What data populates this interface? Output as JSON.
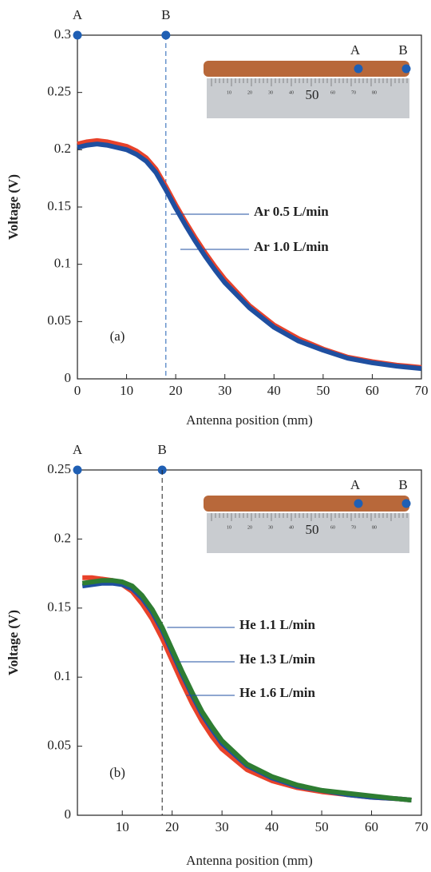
{
  "chart_data": [
    {
      "type": "line",
      "panel_label": "(a)",
      "xlabel": "Antenna position (mm)",
      "ylabel": "Voltage (V)",
      "xlim": [
        0,
        70
      ],
      "ylim": [
        0,
        0.3
      ],
      "xticks": [
        0,
        10,
        20,
        30,
        40,
        50,
        60,
        70
      ],
      "yticks": [
        0,
        0.05,
        0.1,
        0.15,
        0.2,
        0.25,
        0.3
      ],
      "x": [
        0,
        2,
        4,
        6,
        8,
        10,
        12,
        14,
        16,
        18,
        20,
        22,
        24,
        26,
        28,
        30,
        35,
        40,
        45,
        50,
        55,
        60,
        65,
        70
      ],
      "series": [
        {
          "name": "Ar 0.5 L/min",
          "color": "#e8422a",
          "values": [
            0.205,
            0.207,
            0.208,
            0.207,
            0.205,
            0.203,
            0.199,
            0.193,
            0.183,
            0.168,
            0.152,
            0.137,
            0.123,
            0.11,
            0.098,
            0.087,
            0.064,
            0.047,
            0.035,
            0.026,
            0.019,
            0.015,
            0.012,
            0.01
          ]
        },
        {
          "name": "Ar 1.0 L/min",
          "color": "#1f4fa0",
          "values": [
            0.202,
            0.204,
            0.205,
            0.204,
            0.202,
            0.2,
            0.196,
            0.19,
            0.18,
            0.165,
            0.149,
            0.134,
            0.12,
            0.107,
            0.095,
            0.084,
            0.062,
            0.045,
            0.033,
            0.025,
            0.018,
            0.014,
            0.011,
            0.009
          ]
        }
      ],
      "markers": [
        {
          "label": "A",
          "x": 0
        },
        {
          "label": "B",
          "x": 18
        }
      ],
      "inset": {
        "point_labels": [
          "A",
          "B"
        ],
        "ruler_labels": [
          "10",
          "20",
          "30",
          "40",
          "60",
          "70",
          "80"
        ],
        "ruler_highlight": "50"
      }
    },
    {
      "type": "line",
      "panel_label": "(b)",
      "xlabel": "Antenna position (mm)",
      "ylabel": "Voltage (V)",
      "xlim": [
        1,
        70
      ],
      "ylim": [
        0,
        0.25
      ],
      "xticks": [
        10,
        20,
        30,
        40,
        50,
        60,
        70
      ],
      "yticks": [
        0,
        0.05,
        0.1,
        0.15,
        0.2,
        0.25
      ],
      "x": [
        2,
        4,
        6,
        8,
        10,
        12,
        14,
        16,
        18,
        20,
        22,
        24,
        26,
        28,
        30,
        35,
        40,
        45,
        50,
        55,
        60,
        65,
        68
      ],
      "series": [
        {
          "name": "He 1.1 L/min",
          "color": "#e8422a",
          "values": [
            0.172,
            0.172,
            0.171,
            0.17,
            0.167,
            0.162,
            0.153,
            0.142,
            0.128,
            0.112,
            0.096,
            0.081,
            0.068,
            0.057,
            0.048,
            0.033,
            0.025,
            0.02,
            0.017,
            0.015,
            0.013,
            0.012,
            0.011
          ]
        },
        {
          "name": "He 1.3 L/min",
          "color": "#1f4fa0",
          "values": [
            0.166,
            0.167,
            0.168,
            0.168,
            0.167,
            0.164,
            0.157,
            0.147,
            0.134,
            0.118,
            0.102,
            0.087,
            0.073,
            0.062,
            0.052,
            0.036,
            0.027,
            0.021,
            0.018,
            0.015,
            0.013,
            0.012,
            0.011
          ]
        },
        {
          "name": "He 1.6 L/min",
          "color": "#2e7d32",
          "values": [
            0.168,
            0.169,
            0.17,
            0.17,
            0.169,
            0.166,
            0.159,
            0.149,
            0.136,
            0.12,
            0.104,
            0.089,
            0.075,
            0.064,
            0.054,
            0.037,
            0.028,
            0.022,
            0.018,
            0.016,
            0.014,
            0.012,
            0.011
          ]
        }
      ],
      "markers": [
        {
          "label": "A",
          "x": 1
        },
        {
          "label": "B",
          "x": 18
        }
      ],
      "inset": {
        "point_labels": [
          "A",
          "B"
        ],
        "ruler_labels": [
          "10",
          "20",
          "30",
          "40",
          "60",
          "70",
          "80"
        ],
        "ruler_highlight": "50"
      }
    }
  ]
}
